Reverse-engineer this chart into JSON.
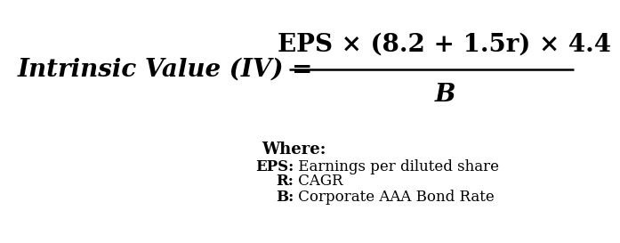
{
  "background_color": "#ffffff",
  "formula_lhs": "Intrinsic Value (IV) =",
  "formula_numerator": "EPS × (8.2 + 1.5r) × 4.4",
  "formula_denominator": "B",
  "where_title": "Where:",
  "definitions": [
    {
      "bold": "EPS:",
      "normal": " Earnings per diluted share"
    },
    {
      "bold": "R:",
      "normal": " CAGR"
    },
    {
      "bold": "B:",
      "normal": " Corporate AAA Bond Rate"
    }
  ],
  "formula_fontsize": 20,
  "where_fontsize": 13,
  "def_fontsize": 12,
  "line_width": 1.8
}
